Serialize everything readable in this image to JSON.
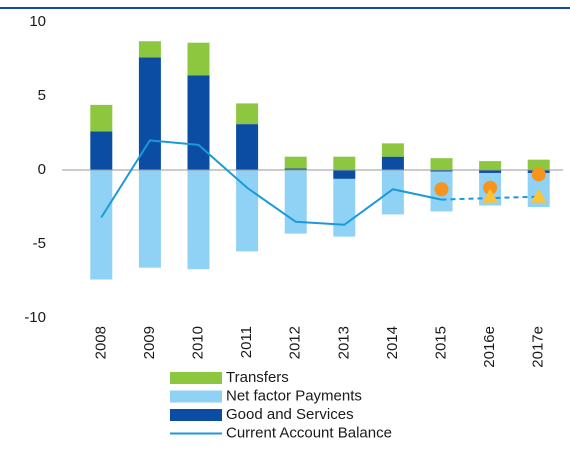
{
  "chart_data": {
    "type": "bar",
    "stacked": true,
    "categories": [
      "2008",
      "2009",
      "2010",
      "2011",
      "2012",
      "2013",
      "2014",
      "2015",
      "2016e",
      "2017e"
    ],
    "series": [
      {
        "name": "Transfers",
        "type": "bar",
        "color": "#8dc63f",
        "values": [
          1.8,
          1.1,
          2.2,
          1.4,
          0.8,
          0.9,
          0.9,
          0.8,
          0.6,
          0.7
        ]
      },
      {
        "name": "Net factor Payments",
        "type": "bar",
        "color": "#8fd2f6",
        "values": [
          -7.4,
          -6.6,
          -6.7,
          -5.5,
          -4.3,
          -3.9,
          -3.0,
          -2.7,
          -2.2,
          -2.3
        ]
      },
      {
        "name": "Good and Services",
        "type": "bar",
        "color": "#0a4da2",
        "values": [
          2.6,
          7.6,
          6.4,
          3.1,
          0.1,
          -0.6,
          0.9,
          -0.1,
          -0.2,
          -0.2
        ]
      },
      {
        "name": "Current Account Balance",
        "type": "line",
        "color": "#1b9ad8",
        "dashed_from": "2015",
        "values": [
          -3.2,
          2.0,
          1.7,
          -1.2,
          -3.5,
          -3.7,
          -1.3,
          -2.0,
          -1.9,
          -1.8
        ]
      },
      {
        "type": "marker",
        "marker": "circle",
        "color": "#f7941d",
        "values": [
          null,
          null,
          null,
          null,
          null,
          null,
          null,
          -1.3,
          -1.2,
          -0.3
        ]
      },
      {
        "type": "marker",
        "marker": "triangle",
        "color": "#fcc33a",
        "values": [
          null,
          null,
          null,
          null,
          null,
          null,
          null,
          null,
          -1.8,
          -1.8
        ]
      }
    ],
    "ylim": [
      -10,
      10
    ],
    "yticks": [
      -10,
      -5,
      0,
      5,
      10
    ],
    "legend": "bottom"
  }
}
